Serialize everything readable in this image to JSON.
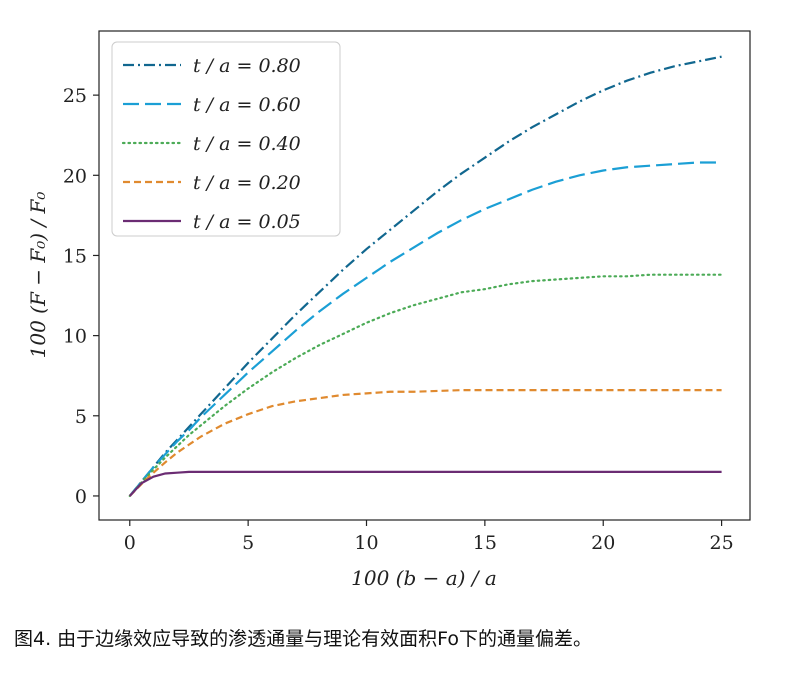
{
  "chart_data": {
    "type": "line",
    "xlabel": "100 (b − a) / a",
    "ylabel": "100 (F − F₀) / F₀",
    "xlim": [
      -1.3,
      26.2
    ],
    "ylim": [
      -1.5,
      29.0
    ],
    "xticks": [
      0,
      5,
      10,
      15,
      20,
      25
    ],
    "yticks": [
      0,
      5,
      10,
      15,
      20,
      25
    ],
    "xtick_labels": [
      "0",
      "5",
      "10",
      "15",
      "20",
      "25"
    ],
    "ytick_labels": [
      "0",
      "5",
      "10",
      "15",
      "20",
      "25"
    ],
    "grid": false,
    "legend_position": "top-left",
    "x": [
      0,
      0.5,
      1,
      1.5,
      2,
      2.5,
      3,
      4,
      5,
      6,
      7,
      8,
      9,
      10,
      11,
      12,
      13,
      14,
      15,
      16,
      17,
      18,
      19,
      20,
      21,
      22,
      23,
      24,
      25
    ],
    "series": [
      {
        "name": "t / a = 0.80",
        "color": "#11678f",
        "dash": "dashdot",
        "values": [
          0,
          0.9,
          1.8,
          2.7,
          3.5,
          4.3,
          5.1,
          6.7,
          8.3,
          9.8,
          11.3,
          12.7,
          14.1,
          15.4,
          16.6,
          17.8,
          19.0,
          20.1,
          21.1,
          22.1,
          23.0,
          23.8,
          24.6,
          25.3,
          25.9,
          26.4,
          26.8,
          27.1,
          27.4
        ]
      },
      {
        "name": "t / a = 0.60",
        "color": "#1b9fd5",
        "dash": "longdash",
        "values": [
          0,
          0.9,
          1.8,
          2.6,
          3.4,
          4.1,
          4.9,
          6.3,
          7.7,
          9.0,
          10.3,
          11.5,
          12.6,
          13.6,
          14.6,
          15.5,
          16.4,
          17.2,
          17.9,
          18.5,
          19.1,
          19.6,
          20.0,
          20.3,
          20.5,
          20.6,
          20.7,
          20.8,
          20.8
        ]
      },
      {
        "name": "t / a = 0.40",
        "color": "#4cab57",
        "dash": "dotted",
        "values": [
          0,
          0.85,
          1.65,
          2.4,
          3.1,
          3.8,
          4.4,
          5.6,
          6.7,
          7.7,
          8.6,
          9.4,
          10.1,
          10.8,
          11.4,
          11.9,
          12.3,
          12.7,
          12.9,
          13.2,
          13.4,
          13.5,
          13.6,
          13.7,
          13.7,
          13.8,
          13.8,
          13.8,
          13.8
        ]
      },
      {
        "name": "t / a = 0.20",
        "color": "#e08a2f",
        "dash": "dashed",
        "values": [
          0,
          0.75,
          1.45,
          2.1,
          2.7,
          3.2,
          3.7,
          4.5,
          5.1,
          5.6,
          5.9,
          6.1,
          6.3,
          6.4,
          6.5,
          6.5,
          6.55,
          6.6,
          6.6,
          6.6,
          6.6,
          6.6,
          6.6,
          6.6,
          6.6,
          6.6,
          6.6,
          6.6,
          6.6
        ]
      },
      {
        "name": "t / a = 0.05",
        "color": "#6b2c73",
        "dash": "solid",
        "values": [
          0,
          0.8,
          1.2,
          1.4,
          1.45,
          1.5,
          1.5,
          1.5,
          1.5,
          1.5,
          1.5,
          1.5,
          1.5,
          1.5,
          1.5,
          1.5,
          1.5,
          1.5,
          1.5,
          1.5,
          1.5,
          1.5,
          1.5,
          1.5,
          1.5,
          1.5,
          1.5,
          1.5,
          1.5
        ]
      }
    ]
  },
  "caption": "图4. 由于边缘效应导致的渗透通量与理论有效面积Fo下的通量偏差。"
}
